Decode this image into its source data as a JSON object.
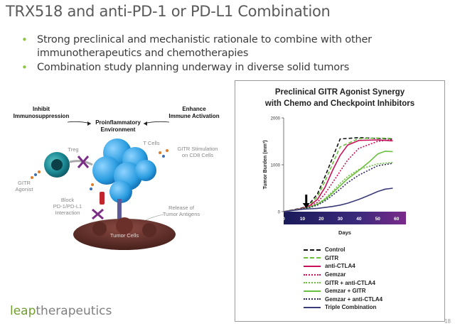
{
  "slide": {
    "title": "TRX518 and anti-PD-1 or PD-L1 Combination",
    "bullets": [
      "Strong preclinical and mechanistic rationale to combine with other immunotherapeutics and chemotherapies",
      "Combination study planning underway in diverse solid tumors"
    ],
    "page_number": "18"
  },
  "logo": {
    "part1": "leap",
    "part2": "therapeutics"
  },
  "diagram": {
    "inhibit": "Inhibit\nImmunosuppression",
    "enhance": "Enhance\nImmune Activation",
    "environment": "Proinflammatory\nEnvironment",
    "treg": "Treg",
    "tcells": "T Cells",
    "gitr_stim": "GITR Stimulation\non CD8 Cells",
    "gitr_agonist": "GITR\nAgonist",
    "block": "Block\nPD-1/PD-L1\nInteraction",
    "release": "Release of\nTumor Antigens",
    "tumor": "Tumor Cells"
  },
  "chart_data": {
    "type": "line",
    "title": "Preclinical GITR Agonist Synergy\nwith Chemo and Checkpoint Inhibitors",
    "xlabel": "Days",
    "ylabel": "Tumor Burden (mm³)",
    "xlim": [
      0,
      65
    ],
    "ylim": [
      0,
      2000
    ],
    "xticks": [
      0,
      10,
      20,
      30,
      40,
      50,
      60
    ],
    "yticks": [
      0,
      1000,
      2000
    ],
    "arrow_day": 12,
    "series": [
      {
        "name": "Control",
        "color": "#111111",
        "dash": "5,3",
        "x": [
          0,
          10,
          14,
          18,
          22,
          26,
          30,
          40,
          50,
          58
        ],
        "y": [
          0,
          80,
          180,
          380,
          750,
          1150,
          1550,
          1580,
          1560,
          1550
        ]
      },
      {
        "name": "GITR",
        "color": "#6abf3c",
        "dash": "5,3",
        "x": [
          0,
          10,
          14,
          18,
          22,
          26,
          30,
          40,
          50,
          58
        ],
        "y": [
          0,
          70,
          150,
          320,
          650,
          1020,
          1380,
          1560,
          1570,
          1560
        ]
      },
      {
        "name": "anti-CTLA4",
        "color": "#c8105a",
        "dash": "",
        "x": [
          0,
          10,
          14,
          18,
          22,
          26,
          30,
          34,
          40,
          50,
          58
        ],
        "y": [
          0,
          70,
          130,
          260,
          520,
          880,
          1200,
          1420,
          1520,
          1530,
          1510
        ]
      },
      {
        "name": "Gemzar",
        "color": "#c8105a",
        "dash": "2,2",
        "x": [
          0,
          10,
          14,
          18,
          22,
          26,
          30,
          34,
          40,
          50,
          58
        ],
        "y": [
          0,
          60,
          110,
          200,
          380,
          620,
          860,
          1100,
          1350,
          1500,
          1540
        ]
      },
      {
        "name": "GITR + anti-CTLA4",
        "color": "#6abf3c",
        "dash": "2,2",
        "x": [
          0,
          10,
          14,
          18,
          22,
          26,
          30,
          34,
          40,
          50,
          58
        ],
        "y": [
          0,
          60,
          100,
          160,
          280,
          430,
          600,
          750,
          900,
          1020,
          1050
        ]
      },
      {
        "name": "Gemzar + GITR",
        "color": "#6abf3c",
        "dash": "",
        "x": [
          0,
          10,
          14,
          18,
          22,
          26,
          30,
          34,
          40,
          46,
          50,
          54,
          58
        ],
        "y": [
          0,
          60,
          100,
          160,
          260,
          400,
          550,
          700,
          880,
          1080,
          1230,
          1290,
          1280
        ]
      },
      {
        "name": "Gemzar + anti-CTLA4",
        "color": "#2a2a60",
        "dash": "2,2",
        "x": [
          0,
          10,
          14,
          18,
          22,
          26,
          30,
          34,
          40,
          46,
          50,
          58
        ],
        "y": [
          0,
          60,
          90,
          140,
          230,
          350,
          480,
          620,
          780,
          900,
          980,
          1030
        ]
      },
      {
        "name": "Triple Combination",
        "color": "#3b3b7a",
        "dash": "",
        "x": [
          0,
          10,
          14,
          18,
          22,
          26,
          30,
          34,
          40,
          46,
          50,
          54,
          58
        ],
        "y": [
          0,
          50,
          60,
          70,
          90,
          110,
          140,
          180,
          260,
          360,
          430,
          480,
          500
        ]
      }
    ]
  }
}
